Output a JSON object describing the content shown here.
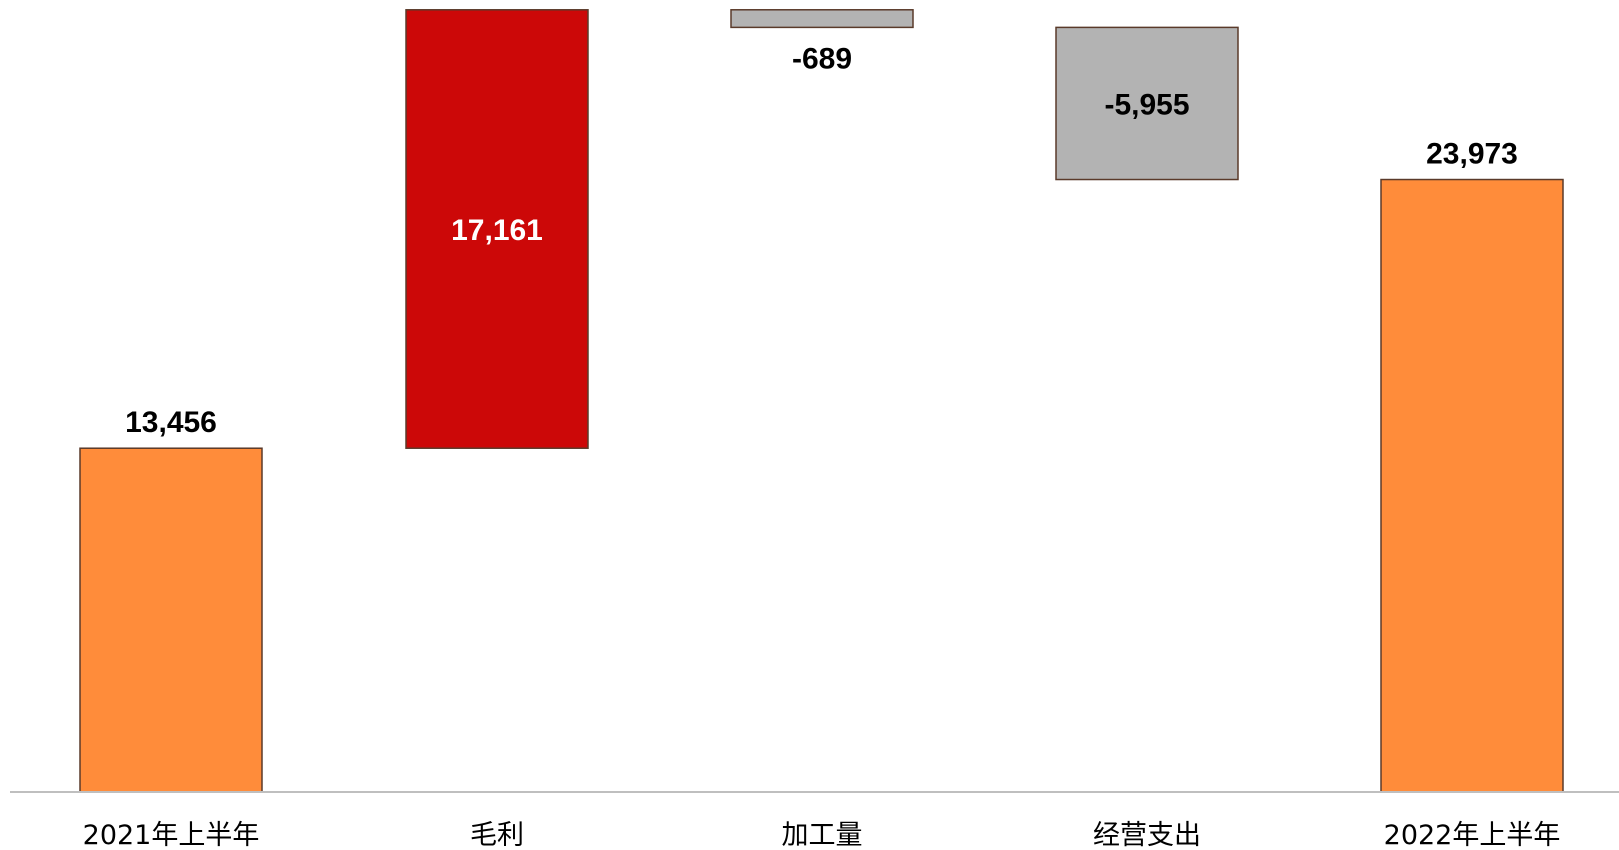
{
  "chart_data": {
    "type": "waterfall",
    "categories": [
      "2021年上半年",
      "毛利",
      "加工量",
      "经营支出",
      "2022年上半年"
    ],
    "values": [
      13456,
      17161,
      -689,
      -5955,
      23973
    ],
    "value_labels": [
      "13,456",
      "17,161",
      "-689",
      "-5,955",
      "23,973"
    ],
    "bar_kinds": [
      "total",
      "increase",
      "decrease",
      "decrease",
      "total"
    ],
    "title": "",
    "xlabel": "",
    "ylabel": "",
    "ylim": [
      0,
      31000
    ],
    "grid": false,
    "legend": "none",
    "colors": {
      "total": "#FF8C3A",
      "increase": "#CC0808",
      "decrease": "#B3B3B3",
      "outline": "#5A3A2A",
      "baseline": "#BFBFBF",
      "label_dark": "#000000",
      "label_light": "#FFFFFF"
    }
  }
}
